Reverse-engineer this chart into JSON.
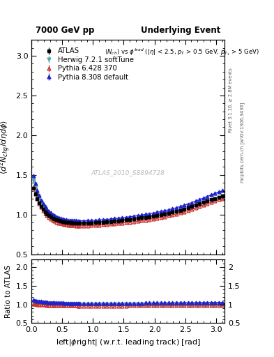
{
  "title_left": "7000 GeV pp",
  "title_right": "Underlying Event",
  "xlabel": "left|#phi right| (w.r.t. leading track) [rad]",
  "ylabel": "(d^{2} N_{chg}/d#eta d#phi)",
  "ylabel_ratio": "Ratio to ATLAS",
  "right_label_top": "Rivet 3.1.10, ≥ 2.8M events",
  "right_label_bottom": "mcplots.cern.ch [arXiv:1306.3436]",
  "watermark": "ATLAS_2010_S8894728",
  "xlim": [
    0.0,
    3.14159
  ],
  "ylim_main": [
    0.5,
    3.2
  ],
  "ylim_ratio": [
    0.5,
    2.2
  ],
  "yticks_main": [
    0.5,
    1.0,
    1.5,
    2.0,
    2.5,
    3.0
  ],
  "yticks_ratio": [
    0.5,
    1.0,
    1.5,
    2.0
  ],
  "series": [
    {
      "label": "ATLAS",
      "color": "#000000",
      "marker": "s",
      "ms": 3.5,
      "filled": true,
      "line": false
    },
    {
      "label": "Herwig 7.2.1 softTune",
      "color": "#55AAAA",
      "marker": "v",
      "ms": 3.5,
      "filled": true,
      "line": true
    },
    {
      "label": "Pythia 6.428 370",
      "color": "#CC3333",
      "marker": "^",
      "ms": 3.5,
      "filled": false,
      "line": true
    },
    {
      "label": "Pythia 8.308 default",
      "color": "#2222CC",
      "marker": "^",
      "ms": 3.5,
      "filled": true,
      "line": true
    }
  ],
  "band_color": "#CCFF00",
  "band_alpha": 0.6,
  "band_lo": 0.97,
  "band_hi": 1.03
}
